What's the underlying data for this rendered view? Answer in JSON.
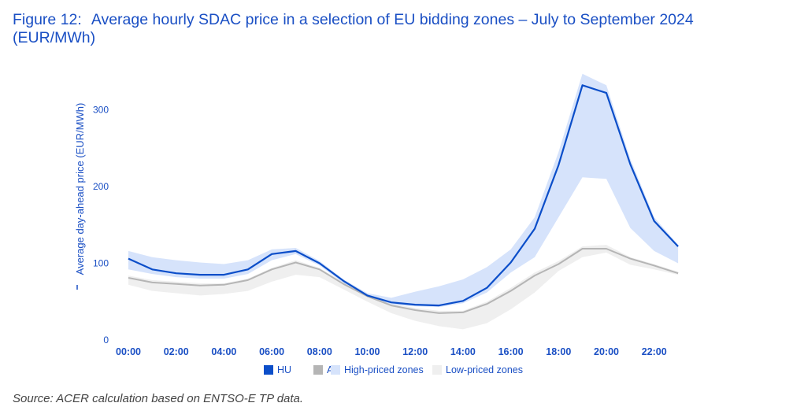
{
  "figure": {
    "number": "Figure 12:",
    "title": "Average hourly SDAC price in a selection of EU bidding zones – July to September 2024 (EUR/MWh)",
    "source": "Source: ACER calculation based on ENTSO-E TP data."
  },
  "chart_data": {
    "type": "line",
    "title": "",
    "xlabel": "",
    "ylabel": "Average day-ahead price (EUR/MWh)",
    "ylim": [
      0,
      350
    ],
    "yticks": [
      0,
      100,
      200,
      300
    ],
    "x": [
      "00:00",
      "01:00",
      "02:00",
      "03:00",
      "04:00",
      "05:00",
      "06:00",
      "07:00",
      "08:00",
      "09:00",
      "10:00",
      "11:00",
      "12:00",
      "13:00",
      "14:00",
      "15:00",
      "16:00",
      "17:00",
      "18:00",
      "19:00",
      "20:00",
      "21:00",
      "22:00",
      "23:00"
    ],
    "xtick_labels": [
      "00:00",
      "02:00",
      "04:00",
      "06:00",
      "08:00",
      "10:00",
      "12:00",
      "14:00",
      "16:00",
      "18:00",
      "20:00",
      "22:00"
    ],
    "grid": false,
    "legend_position": "bottom",
    "series": [
      {
        "name": "HU",
        "kind": "line",
        "color": "#0b4ec9",
        "values": [
          106,
          92,
          87,
          85,
          85,
          92,
          112,
          116,
          100,
          77,
          58,
          49,
          46,
          45,
          51,
          68,
          101,
          145,
          228,
          332,
          322,
          229,
          155,
          122
        ]
      },
      {
        "name": "AT",
        "kind": "line",
        "color": "#b5b5b5",
        "values": [
          81,
          75,
          73,
          71,
          72,
          78,
          92,
          101,
          92,
          73,
          57,
          45,
          39,
          35,
          36,
          47,
          64,
          84,
          99,
          119,
          119,
          106,
          97,
          87
        ]
      },
      {
        "name": "High-priced zones",
        "kind": "band",
        "color": "#d6e3fb",
        "upper": [
          116,
          108,
          104,
          101,
          99,
          104,
          118,
          120,
          103,
          79,
          61,
          55,
          63,
          70,
          79,
          95,
          118,
          160,
          245,
          347,
          332,
          236,
          160,
          124
        ],
        "lower": [
          92,
          86,
          82,
          80,
          80,
          86,
          104,
          112,
          97,
          74,
          56,
          46,
          44,
          43,
          48,
          62,
          88,
          108,
          160,
          212,
          210,
          146,
          116,
          100
        ]
      },
      {
        "name": "Low-priced zones",
        "kind": "band",
        "color": "#efefef",
        "upper": [
          84,
          78,
          76,
          74,
          74,
          80,
          94,
          104,
          94,
          75,
          58,
          47,
          42,
          38,
          38,
          50,
          68,
          88,
          103,
          122,
          124,
          108,
          99,
          89
        ],
        "lower": [
          72,
          64,
          61,
          58,
          60,
          64,
          76,
          85,
          82,
          66,
          50,
          35,
          25,
          18,
          14,
          22,
          40,
          62,
          90,
          108,
          114,
          98,
          92,
          85
        ]
      }
    ]
  }
}
